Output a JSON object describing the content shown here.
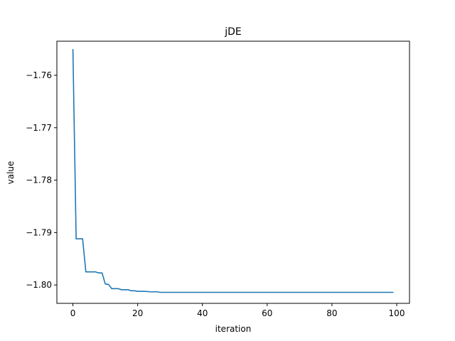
{
  "chart_data": {
    "type": "line",
    "title": "jDE",
    "xlabel": "iteration",
    "ylabel": "value",
    "xlim": [
      -4.95,
      103.95
    ],
    "ylim": [
      -1.8035,
      -1.7535
    ],
    "x_ticks": [
      0,
      20,
      40,
      60,
      80,
      100
    ],
    "x_tick_labels": [
      "0",
      "20",
      "40",
      "60",
      "80",
      "100"
    ],
    "y_ticks": [
      -1.8,
      -1.79,
      -1.78,
      -1.77,
      -1.76
    ],
    "y_tick_labels": [
      "−1.80",
      "−1.79",
      "−1.78",
      "−1.77",
      "−1.76"
    ],
    "grid": false,
    "colors": {
      "line": "#1f77b4",
      "axes": "#000000",
      "background": "#ffffff"
    },
    "series": [
      {
        "x": [
          0,
          1,
          2,
          3,
          4,
          5,
          6,
          7,
          8,
          9,
          10,
          11,
          12,
          13,
          14,
          15,
          16,
          17,
          18,
          19,
          20,
          22,
          24,
          26,
          27,
          99
        ],
        "y": [
          -1.755,
          -1.7912,
          -1.7912,
          -1.7912,
          -1.7975,
          -1.7975,
          -1.7975,
          -1.7975,
          -1.7977,
          -1.7977,
          -1.7998,
          -1.7999,
          -1.8007,
          -1.8007,
          -1.8007,
          -1.8009,
          -1.8009,
          -1.8009,
          -1.8011,
          -1.8011,
          -1.8012,
          -1.8012,
          -1.8013,
          -1.8013,
          -1.8014,
          -1.8014
        ]
      }
    ]
  }
}
